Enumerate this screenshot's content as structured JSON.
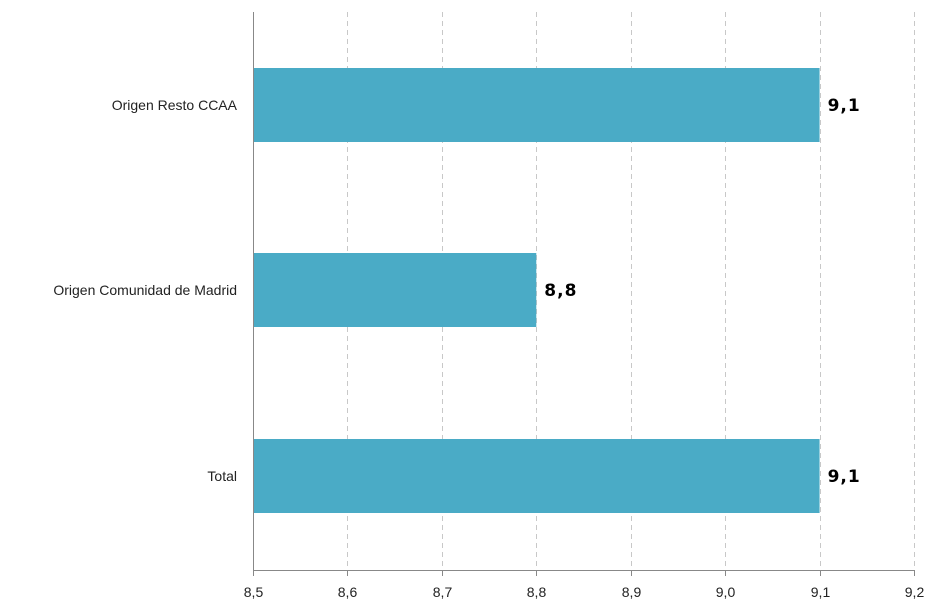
{
  "chart_data": {
    "type": "bar",
    "orientation": "horizontal",
    "categories": [
      "Origen Resto CCAA",
      "Origen Comunidad de Madrid",
      "Total"
    ],
    "values": [
      9.1,
      8.8,
      9.1
    ],
    "data_labels": [
      "9,1",
      "8,8",
      "9,1"
    ],
    "xlim": [
      8.5,
      9.2
    ],
    "x_ticks": [
      8.5,
      8.6,
      8.7,
      8.8,
      8.9,
      9.0,
      9.1,
      9.2
    ],
    "x_tick_labels": [
      "8,5",
      "8,6",
      "8,7",
      "8,8",
      "8,9",
      "9,0",
      "9,1",
      "9,2"
    ],
    "grid": "vertical dashed",
    "legend": "none",
    "title": "",
    "xlabel": "",
    "ylabel": "",
    "colors": {
      "bar": "#4aabc6",
      "grid": "#c8c8c8",
      "axis": "#888888"
    }
  }
}
